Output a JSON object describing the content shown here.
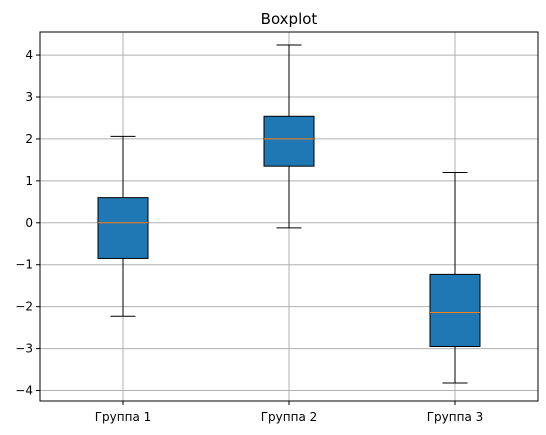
{
  "chart_data": {
    "type": "boxplot",
    "title": "Boxplot",
    "xlabel": "",
    "ylabel": "",
    "categories": [
      "Группа 1",
      "Группа 2",
      "Группа 3"
    ],
    "boxes": [
      {
        "category": "Группа 1",
        "whisker_low": -2.23,
        "q1": -0.85,
        "median": 0.0,
        "q3": 0.6,
        "whisker_high": 2.06
      },
      {
        "category": "Группа 2",
        "whisker_low": -0.12,
        "q1": 1.35,
        "median": 2.0,
        "q3": 2.54,
        "whisker_high": 4.24
      },
      {
        "category": "Группа 3",
        "whisker_low": -3.82,
        "q1": -2.95,
        "median": -2.14,
        "q3": -1.23,
        "whisker_high": 1.2
      }
    ],
    "yticks": [
      -4,
      -3,
      -2,
      -1,
      0,
      1,
      2,
      3,
      4
    ],
    "ytick_labels": [
      "−4",
      "−3",
      "−2",
      "−1",
      "0",
      "1",
      "2",
      "3",
      "4"
    ],
    "ylim": [
      -4.25,
      4.55
    ],
    "grid": true,
    "colors": {
      "box_fill": "#1f77b4",
      "median": "#ff7f0e",
      "grid": "#b0b0b0",
      "axis": "#000000"
    }
  }
}
